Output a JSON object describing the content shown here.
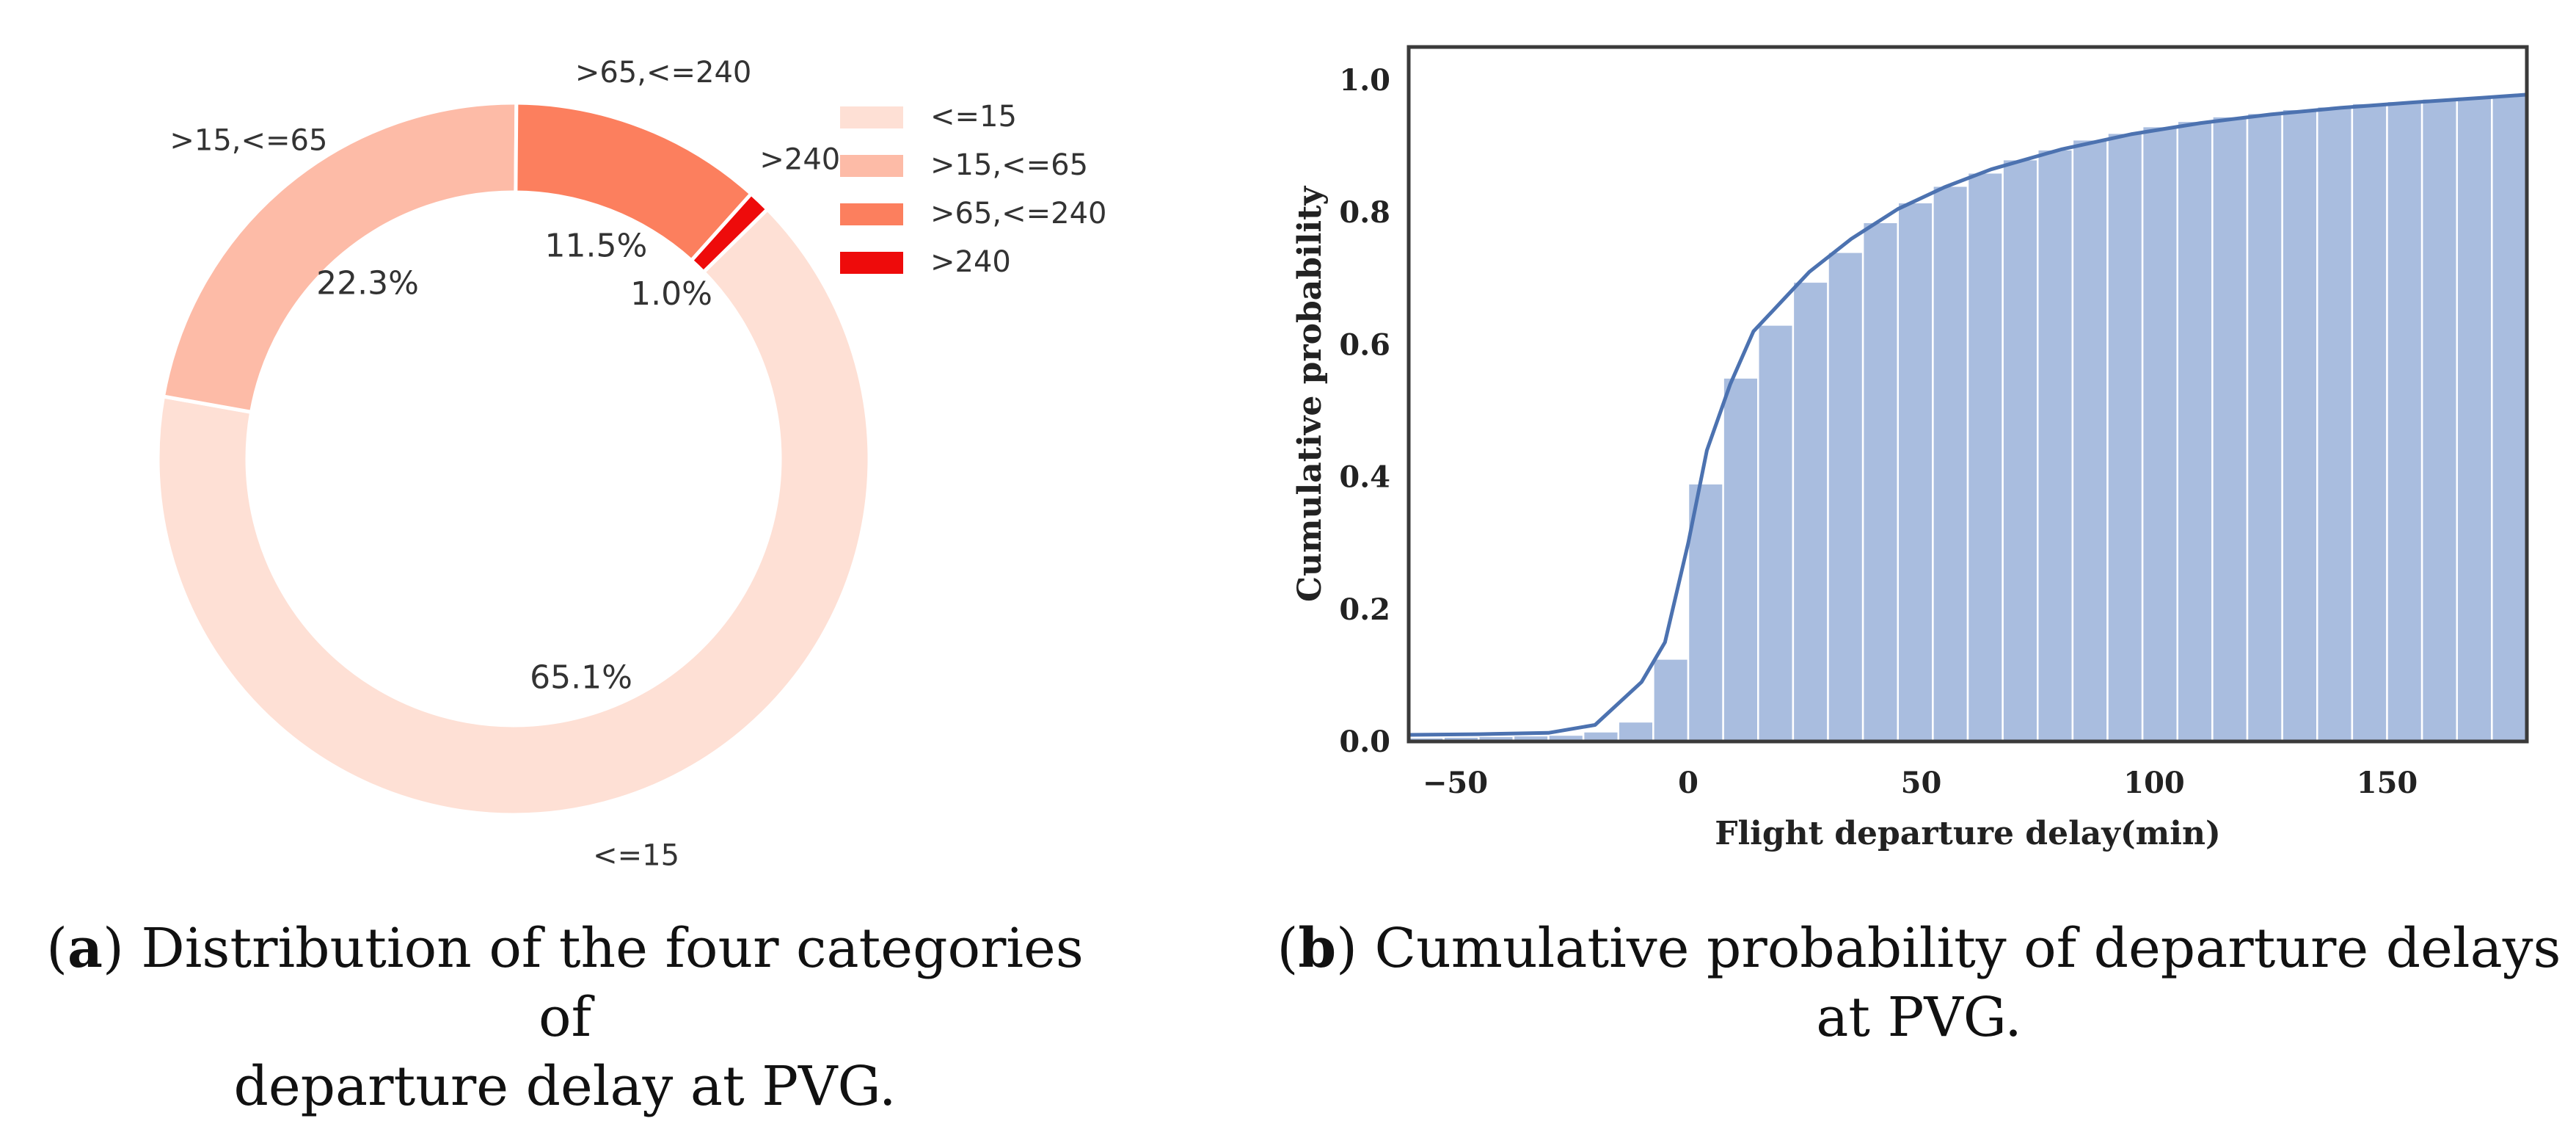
{
  "chart_data": [
    {
      "type": "pie",
      "variant": "donut",
      "title": "",
      "slices": [
        {
          "label": "<=15",
          "value": 65.1,
          "pct_label": "65.1%",
          "outer_label": "<=15",
          "color": "#fee0d5"
        },
        {
          "label": ">15,<=65",
          "value": 22.3,
          "pct_label": "22.3%",
          "outer_label": ">15,<=65",
          "color": "#fdbba7"
        },
        {
          "label": ">65,<=240",
          "value": 11.5,
          "pct_label": "11.5%",
          "outer_label": ">65,<=240",
          "color": "#fc7f5e"
        },
        {
          "label": ">240",
          "value": 1.0,
          "pct_label": "1.0%",
          "outer_label": ">240",
          "color": "#ee0b0b"
        }
      ],
      "legend": {
        "placement": "top-right",
        "entries": [
          {
            "label": "<=15",
            "color": "#fee0d5"
          },
          {
            "label": ">15,<=65",
            "color": "#fdbba7"
          },
          {
            "label": ">65,<=240",
            "color": "#fc7f5e"
          },
          {
            "label": ">240",
            "color": "#ee0b0b"
          }
        ]
      }
    },
    {
      "type": "bar",
      "variant": "cumulative histogram with line",
      "title": "",
      "xlabel": "Flight departure delay(min)",
      "ylabel": "Cumulative probability",
      "xlim": [
        -60,
        180
      ],
      "ylim": [
        0,
        1.05
      ],
      "xticks": [
        -50,
        0,
        50,
        100,
        150
      ],
      "xtick_labels": [
        "−50",
        "0",
        "50",
        "100",
        "150"
      ],
      "yticks": [
        0.0,
        0.2,
        0.4,
        0.6,
        0.8,
        1.0
      ],
      "ytick_labels": [
        "0.0",
        "0.2",
        "0.4",
        "0.6",
        "0.8",
        "1.0"
      ],
      "grid": false,
      "bar_color": "#a9bddf",
      "line_color": "#4c72b0",
      "bin_width": 7.5,
      "bins": [
        {
          "x": -60.0,
          "y": 0.006
        },
        {
          "x": -52.5,
          "y": 0.007
        },
        {
          "x": -45.0,
          "y": 0.008
        },
        {
          "x": -37.5,
          "y": 0.009
        },
        {
          "x": -30.0,
          "y": 0.01
        },
        {
          "x": -22.5,
          "y": 0.015
        },
        {
          "x": -15.0,
          "y": 0.03
        },
        {
          "x": -7.5,
          "y": 0.125
        },
        {
          "x": 0.0,
          "y": 0.39
        },
        {
          "x": 7.5,
          "y": 0.55
        },
        {
          "x": 15.0,
          "y": 0.63
        },
        {
          "x": 22.5,
          "y": 0.695
        },
        {
          "x": 30.0,
          "y": 0.74
        },
        {
          "x": 37.5,
          "y": 0.785
        },
        {
          "x": 45.0,
          "y": 0.815
        },
        {
          "x": 52.5,
          "y": 0.84
        },
        {
          "x": 60.0,
          "y": 0.86
        },
        {
          "x": 67.5,
          "y": 0.88
        },
        {
          "x": 75.0,
          "y": 0.895
        },
        {
          "x": 82.5,
          "y": 0.91
        },
        {
          "x": 90.0,
          "y": 0.92
        },
        {
          "x": 97.5,
          "y": 0.93
        },
        {
          "x": 105.0,
          "y": 0.938
        },
        {
          "x": 112.5,
          "y": 0.945
        },
        {
          "x": 120.0,
          "y": 0.95
        },
        {
          "x": 127.5,
          "y": 0.956
        },
        {
          "x": 135.0,
          "y": 0.96
        },
        {
          "x": 142.5,
          "y": 0.965
        },
        {
          "x": 150.0,
          "y": 0.968
        },
        {
          "x": 157.5,
          "y": 0.972
        },
        {
          "x": 165.0,
          "y": 0.975
        },
        {
          "x": 172.5,
          "y": 0.978
        }
      ],
      "line": [
        {
          "x": -60,
          "y": 0.01
        },
        {
          "x": -45,
          "y": 0.011
        },
        {
          "x": -30,
          "y": 0.013
        },
        {
          "x": -20,
          "y": 0.025
        },
        {
          "x": -10,
          "y": 0.09
        },
        {
          "x": -5,
          "y": 0.15
        },
        {
          "x": 0,
          "y": 0.3
        },
        {
          "x": 4,
          "y": 0.44
        },
        {
          "x": 9,
          "y": 0.54
        },
        {
          "x": 14,
          "y": 0.62
        },
        {
          "x": 20,
          "y": 0.665
        },
        {
          "x": 26,
          "y": 0.71
        },
        {
          "x": 35,
          "y": 0.76
        },
        {
          "x": 45,
          "y": 0.805
        },
        {
          "x": 55,
          "y": 0.838
        },
        {
          "x": 65,
          "y": 0.865
        },
        {
          "x": 80,
          "y": 0.895
        },
        {
          "x": 95,
          "y": 0.918
        },
        {
          "x": 110,
          "y": 0.935
        },
        {
          "x": 125,
          "y": 0.948
        },
        {
          "x": 140,
          "y": 0.958
        },
        {
          "x": 155,
          "y": 0.966
        },
        {
          "x": 170,
          "y": 0.973
        },
        {
          "x": 180,
          "y": 0.978
        }
      ]
    }
  ],
  "captions": {
    "a_tag": "a",
    "a_line1": "Distribution of the four categories of",
    "a_line2": "departure delay at PVG.",
    "b_tag": "b",
    "b_line1": "Cumulative probability of departure delays",
    "b_line2": "at PVG."
  }
}
